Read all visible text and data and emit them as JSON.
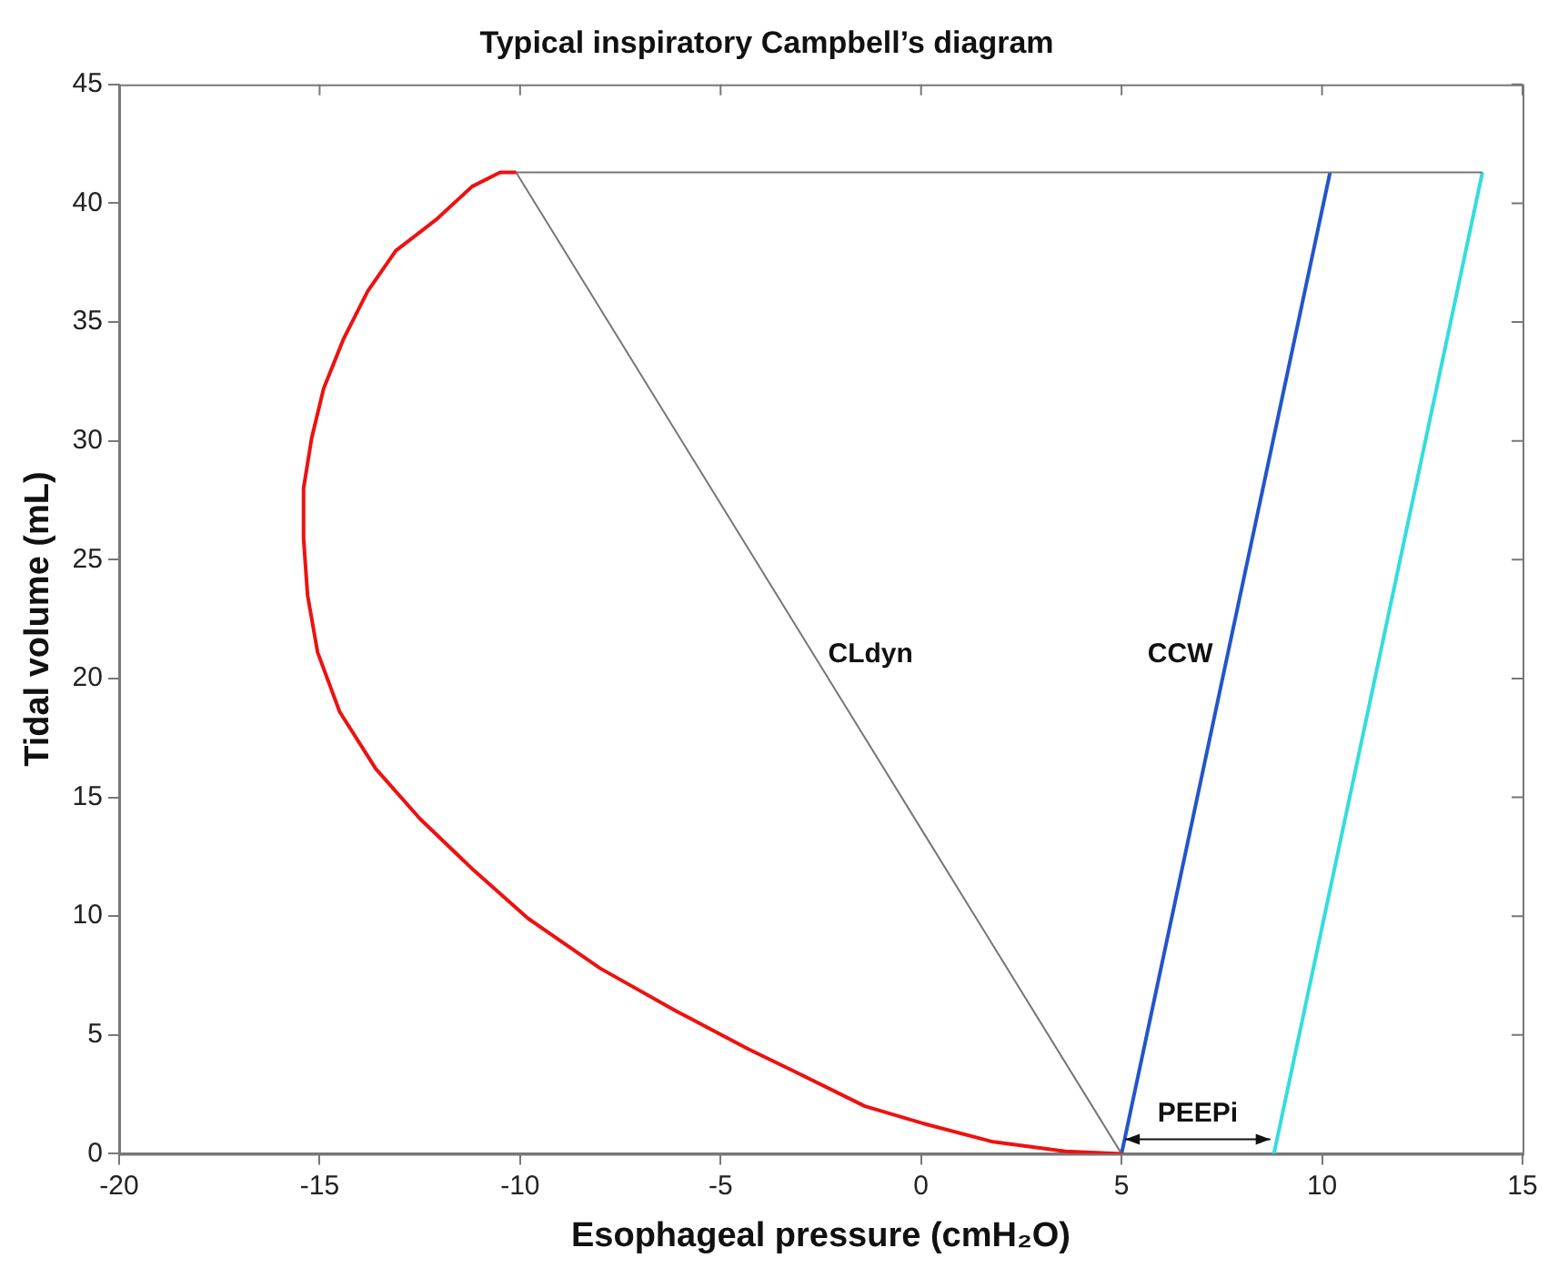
{
  "chart_data": {
    "type": "line",
    "title": "Typical inspiratory Campbell’s diagram",
    "xlabel": "Esophageal pressure (cmH₂O)",
    "ylabel": "Tidal volume (mL)",
    "xlim": [
      -20,
      15
    ],
    "xticks": [
      -20,
      -15,
      -10,
      -5,
      0,
      5,
      10,
      15
    ],
    "ylim": [
      0,
      45
    ],
    "yticks": [
      0,
      5,
      10,
      15,
      20,
      25,
      30,
      35,
      40,
      45
    ],
    "grid": false,
    "legend": false,
    "marker": "none",
    "line_style": "solid",
    "series": [
      {
        "color": "#ee1111",
        "x": [
          5,
          3.6,
          1.8,
          0,
          -1.4,
          -3.2,
          -4.3,
          -6.1,
          -8.0,
          -9.8,
          -11.2,
          -12.5,
          -13.6,
          -14.5,
          -15.05,
          -15.3,
          -15.4,
          -15.4,
          -15.2,
          -14.9,
          -14.4,
          -13.8,
          -13.1,
          -12.1,
          -11.2,
          -10.5,
          -10.1
        ],
        "values": [
          0,
          0.1,
          0.5,
          1.3,
          2.0,
          3.5,
          4.4,
          6.0,
          7.8,
          9.9,
          12.0,
          14.1,
          16.2,
          18.6,
          21.1,
          23.5,
          25.9,
          28.0,
          30.1,
          32.2,
          34.3,
          36.3,
          38.0,
          39.3,
          40.7,
          41.3,
          41.3
        ]
      },
      {
        "color": "#777777",
        "x": [
          5,
          -10.1,
          14
        ],
        "values": [
          0,
          41.3,
          41.3
        ]
      },
      {
        "color": "#2255cc",
        "x": [
          5,
          10.2
        ],
        "values": [
          0,
          41.3
        ]
      },
      {
        "color": "#33dddd",
        "x": [
          8.8,
          14
        ],
        "values": [
          0,
          41.3
        ]
      }
    ],
    "annotations": [
      {
        "text": "CLdyn",
        "x": -2.68,
        "y": 21
      },
      {
        "text": "CCW",
        "x": 7.64,
        "y": 21
      },
      "PEEPi"
    ]
  }
}
